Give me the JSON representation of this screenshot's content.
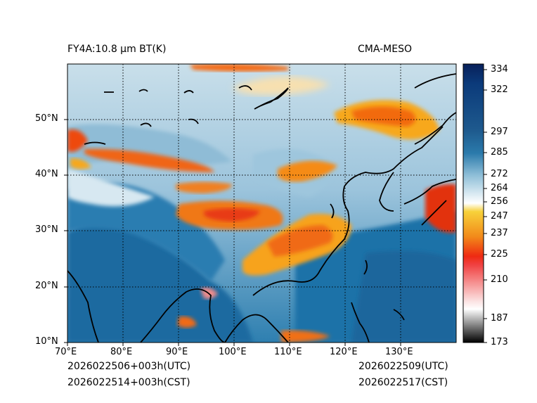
{
  "header": {
    "product": "FY4A:10.8 µm BT(K)",
    "source": "CMA-MESO"
  },
  "map": {
    "lon_labels": [
      "70°E",
      "80°E",
      "90°E",
      "100°E",
      "110°E",
      "120°E",
      "130°E"
    ],
    "lat_labels": [
      "50°N",
      "40°N",
      "30°N",
      "20°N",
      "10°N"
    ]
  },
  "colorbar": {
    "ticks": [
      "334",
      "322",
      "297",
      "285",
      "272",
      "264",
      "256",
      "247",
      "237",
      "225",
      "210",
      "187",
      "173"
    ]
  },
  "footer": {
    "init_utc": "2026022506+003h(UTC)",
    "init_cst": "2026022514+003h(CST)",
    "valid_utc": "2026022509(UTC)",
    "valid_cst": "2026022517(CST)"
  },
  "colors": {
    "ocean": "#1d6fa5",
    "cloud_cold": "#f04a10",
    "cloud_mid": "#f7a81a",
    "land_cool": "#aed0e2"
  }
}
